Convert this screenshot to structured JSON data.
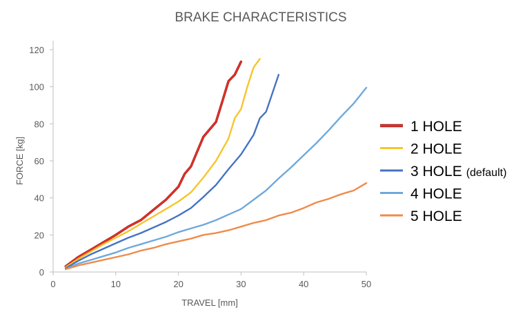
{
  "chart_data": {
    "type": "line",
    "title": "BRAKE CHARACTERISTICS",
    "xlabel": "TRAVEL [mm]",
    "ylabel": "FORCE [kg]",
    "xlim": [
      0,
      50
    ],
    "ylim": [
      0,
      120
    ],
    "xticks": [
      0,
      10,
      20,
      30,
      40,
      50
    ],
    "yticks": [
      0,
      20,
      40,
      60,
      80,
      100,
      120
    ],
    "grid": false,
    "legend_position": "right",
    "series": [
      {
        "name": "1 HOLE",
        "note": "",
        "color": "#e8312a",
        "x": [
          2,
          4,
          6,
          8,
          10,
          12,
          14,
          16,
          18,
          20,
          21,
          22,
          23,
          24,
          25,
          26,
          27,
          28,
          29,
          30
        ],
        "y": [
          3,
          8,
          12,
          16,
          20,
          24.5,
          28,
          33.5,
          39,
          46,
          53,
          57,
          65,
          73,
          77,
          81,
          92,
          103,
          106.5,
          113.5
        ]
      },
      {
        "name": "2 HOLE",
        "note": "",
        "color": "#f7c42a",
        "x": [
          2,
          4,
          6,
          8,
          10,
          12,
          14,
          16,
          18,
          20,
          22,
          24,
          26,
          28,
          29,
          30,
          31,
          32,
          33
        ],
        "y": [
          2.5,
          7,
          11,
          15,
          18.5,
          22,
          26,
          30,
          34,
          38,
          43,
          51,
          60,
          72,
          83,
          88,
          100,
          110.5,
          115
        ]
      },
      {
        "name": "3 HOLE",
        "note": "(default)",
        "color": "#4472c4",
        "x": [
          2,
          4,
          6,
          8,
          10,
          12,
          14,
          16,
          18,
          20,
          22,
          24,
          26,
          28,
          30,
          32,
          33,
          34,
          35,
          36
        ],
        "y": [
          2,
          6,
          9.5,
          12.5,
          15.5,
          18.5,
          21,
          24,
          27,
          30.5,
          34.5,
          40.5,
          47,
          55.5,
          63.5,
          74,
          83,
          86.5,
          96.5,
          106.5
        ]
      },
      {
        "name": "4 HOLE",
        "note": "",
        "color": "#6fa8dc",
        "x": [
          2,
          4,
          6,
          8,
          10,
          12,
          14,
          16,
          18,
          20,
          22,
          24,
          26,
          28,
          30,
          32,
          34,
          36,
          38,
          40,
          42,
          44,
          46,
          48,
          50
        ],
        "y": [
          1.5,
          4.5,
          6.5,
          8.5,
          10.5,
          13,
          15,
          17,
          19,
          21.5,
          23.5,
          25.5,
          28,
          31,
          34,
          39,
          44,
          50.5,
          56.5,
          63,
          69.5,
          76.5,
          84,
          91,
          99.5
        ]
      },
      {
        "name": "5 HOLE",
        "note": "",
        "color": "#f08a4b",
        "x": [
          2,
          4,
          6,
          8,
          10,
          12,
          14,
          16,
          18,
          20,
          22,
          24,
          26,
          28,
          30,
          32,
          34,
          36,
          38,
          40,
          42,
          44,
          46,
          48,
          50
        ],
        "y": [
          1.5,
          3.5,
          5,
          6.5,
          8,
          9.5,
          11.5,
          13,
          15,
          16.5,
          18,
          20,
          21,
          22.5,
          24.5,
          26.5,
          28,
          30.5,
          32,
          34.5,
          37.5,
          39.5,
          42,
          44,
          48
        ]
      }
    ]
  }
}
